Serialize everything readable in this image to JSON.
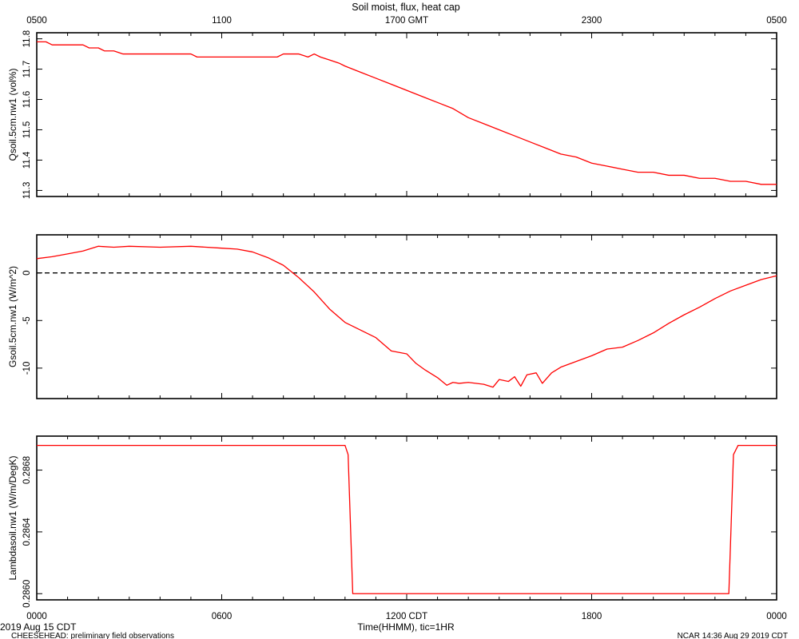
{
  "chart_data": {
    "type": "line",
    "title": "Soil moist, flux, heat cap",
    "top_axis": {
      "label": "1700 GMT",
      "ticks": [
        "0500",
        "1100",
        "1700 GMT",
        "2300",
        "0500"
      ]
    },
    "bottom_axis": {
      "label": "Time(HHMM), tic=1HR",
      "ticks": [
        "0000",
        "0600",
        "1200 CDT",
        "1800",
        "0000"
      ],
      "xlim": [
        0,
        24
      ]
    },
    "date_label": "2019 Aug 15 CDT",
    "footer_left": "CHEESEHEAD: preliminary field observations",
    "footer_right": "NCAR 14:36 Aug 29 2019 CDT",
    "panels": [
      {
        "ylabel": "Qsoil.5cm.nw1 (vol%)",
        "ylim": [
          11.28,
          11.82
        ],
        "yticks": [
          11.3,
          11.4,
          11.5,
          11.6,
          11.7,
          11.8
        ],
        "ytick_labels": [
          "11.3",
          "11.4",
          "11.5",
          "11.6",
          "11.7",
          "11.8"
        ],
        "series": [
          {
            "color": "#ff0000",
            "x": [
              0,
              0.3,
              0.5,
              1,
              1.5,
              1.7,
              2.0,
              2.2,
              2.5,
              2.8,
              3.0,
              3.5,
              4.0,
              4.5,
              5.0,
              5.2,
              5.5,
              6.0,
              6.3,
              6.5,
              7.0,
              7.5,
              7.8,
              8.0,
              8.5,
              8.8,
              9.0,
              9.2,
              9.5,
              9.8,
              10.0,
              10.5,
              11.0,
              11.5,
              12.0,
              12.5,
              13.0,
              13.5,
              14.0,
              14.5,
              15.0,
              15.5,
              16.0,
              16.5,
              17.0,
              17.5,
              18.0,
              18.5,
              19.0,
              19.5,
              20.0,
              20.5,
              21.0,
              21.5,
              22.0,
              22.5,
              23.0,
              23.5,
              24.0
            ],
            "y": [
              11.79,
              11.79,
              11.78,
              11.78,
              11.78,
              11.77,
              11.77,
              11.76,
              11.76,
              11.75,
              11.75,
              11.75,
              11.75,
              11.75,
              11.75,
              11.74,
              11.74,
              11.74,
              11.74,
              11.74,
              11.74,
              11.74,
              11.74,
              11.75,
              11.75,
              11.74,
              11.75,
              11.74,
              11.73,
              11.72,
              11.71,
              11.69,
              11.67,
              11.65,
              11.63,
              11.61,
              11.59,
              11.57,
              11.54,
              11.52,
              11.5,
              11.48,
              11.46,
              11.44,
              11.42,
              11.41,
              11.39,
              11.38,
              11.37,
              11.36,
              11.36,
              11.35,
              11.35,
              11.34,
              11.34,
              11.33,
              11.33,
              11.32,
              11.32
            ]
          }
        ]
      },
      {
        "ylabel": "Gsoil.5cm.nw1 (W/m^2)",
        "ylim": [
          -13.2,
          4
        ],
        "yticks": [
          0,
          -5,
          -10
        ],
        "ytick_labels": [
          "0",
          "-5",
          "-10"
        ],
        "zero_line": true,
        "series": [
          {
            "color": "#ff0000",
            "x": [
              0,
              0.5,
              1,
              1.5,
              2.0,
              2.5,
              3.0,
              4.0,
              5.0,
              6.0,
              6.5,
              7.0,
              7.5,
              8.0,
              8.5,
              9.0,
              9.5,
              10.0,
              10.5,
              11.0,
              11.5,
              12.0,
              12.3,
              12.6,
              13.0,
              13.3,
              13.5,
              13.7,
              14.0,
              14.5,
              14.8,
              15.0,
              15.3,
              15.5,
              15.7,
              15.9,
              16.2,
              16.4,
              16.7,
              17.0,
              17.5,
              18.0,
              18.5,
              19.0,
              19.5,
              20.0,
              20.5,
              21.0,
              21.5,
              22.0,
              22.5,
              23.0,
              23.5,
              24.0
            ],
            "y": [
              1.5,
              1.7,
              2.0,
              2.3,
              2.8,
              2.7,
              2.8,
              2.7,
              2.8,
              2.6,
              2.5,
              2.2,
              1.6,
              0.8,
              -0.5,
              -2.0,
              -3.8,
              -5.2,
              -6.0,
              -6.8,
              -8.2,
              -8.5,
              -9.5,
              -10.2,
              -11.0,
              -11.8,
              -11.5,
              -11.6,
              -11.5,
              -11.7,
              -12.0,
              -11.2,
              -11.4,
              -10.9,
              -11.9,
              -10.7,
              -10.5,
              -11.6,
              -10.5,
              -9.9,
              -9.3,
              -8.7,
              -8.0,
              -7.8,
              -7.1,
              -6.3,
              -5.3,
              -4.4,
              -3.6,
              -2.7,
              -1.9,
              -1.3,
              -0.7,
              -0.3
            ]
          }
        ]
      },
      {
        "ylabel": "Lambdasoil.nw1 (W/m/DegK)",
        "ylim": [
          0.28596,
          0.28702
        ],
        "yticks": [
          0.286,
          0.2864,
          0.2868
        ],
        "ytick_labels": [
          "0.2860",
          "0.2864",
          "0.2868"
        ],
        "series": [
          {
            "color": "#ff0000",
            "x": [
              0,
              10.0,
              10.1,
              10.25,
              22.45,
              22.6,
              22.75,
              24.0
            ],
            "y": [
              0.28696,
              0.28696,
              0.2869,
              0.286,
              0.286,
              0.2869,
              0.28696,
              0.28696
            ]
          }
        ]
      }
    ]
  }
}
